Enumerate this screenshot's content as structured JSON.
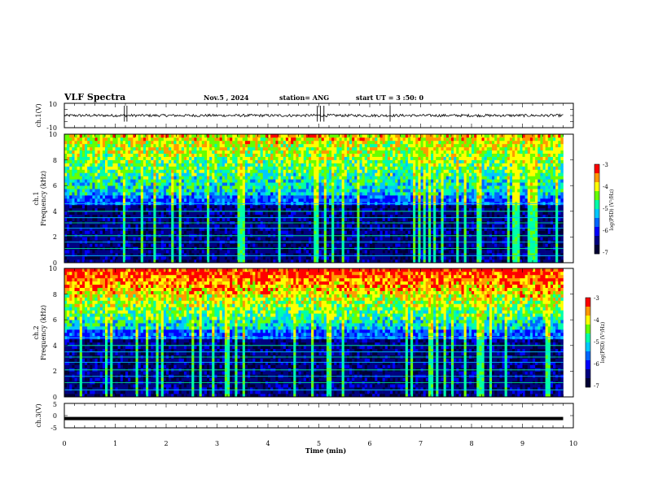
{
  "header": {
    "title": "VLF Spectra",
    "date": "Nov.5 , 2024",
    "station": "station= ANG",
    "start": "start UT = 3 :50: 0"
  },
  "colors": {
    "spectrogram": [
      "#000033",
      "#000080",
      "#0000ff",
      "#0066ff",
      "#00c8ff",
      "#00ffaa",
      "#66ff00",
      "#ffff00",
      "#ff9900",
      "#ff0000"
    ]
  },
  "chart_data": [
    {
      "type": "line",
      "panel": "ch1-waveform",
      "ylabel": "ch.1(V)",
      "ylim": [
        -10,
        10
      ],
      "yticks": [
        "10",
        "-10"
      ],
      "xlim": [
        0,
        10
      ],
      "series": [
        {
          "baseline": 0
        }
      ]
    },
    {
      "type": "heatmap",
      "panel": "ch1-spectrogram",
      "ylabel_line1": "ch.1",
      "ylabel_line2": "Frequency (kHz)",
      "ylim": [
        0,
        10
      ],
      "yticks": [
        "0",
        "2",
        "4",
        "6",
        "8",
        "10"
      ],
      "xlim": [
        0,
        9.8
      ],
      "colorbar": {
        "label": "log(PSD) (V²/Hz)",
        "range": [
          -7,
          -3
        ],
        "ticks": [
          "-3",
          "-4",
          "-5",
          "-6",
          "-7"
        ]
      }
    },
    {
      "type": "heatmap",
      "panel": "ch2-spectrogram",
      "ylabel_line1": "ch.2",
      "ylabel_line2": "Frequency (kHz)",
      "ylim": [
        0,
        10
      ],
      "yticks": [
        "0",
        "2",
        "4",
        "6",
        "8",
        "10"
      ],
      "xlim": [
        0,
        9.8
      ],
      "colorbar": {
        "label": "log(PSD) (V²/Hz)",
        "range": [
          -7,
          -3
        ],
        "ticks": [
          "-3",
          "-4",
          "-5",
          "-6",
          "-7"
        ]
      }
    },
    {
      "type": "line",
      "panel": "ch3-waveform",
      "ylabel": "ch.3(V)",
      "ylim": [
        -5,
        5
      ],
      "yticks": [
        "5",
        "0",
        "-5"
      ],
      "xlim": [
        0,
        10
      ],
      "series": [
        {
          "baseline": -1.2
        }
      ]
    }
  ],
  "xaxis": {
    "label": "Time (min)",
    "ticks": [
      "0",
      "1",
      "2",
      "3",
      "4",
      "5",
      "6",
      "7",
      "8",
      "9",
      "10"
    ],
    "range": [
      0,
      10
    ]
  }
}
